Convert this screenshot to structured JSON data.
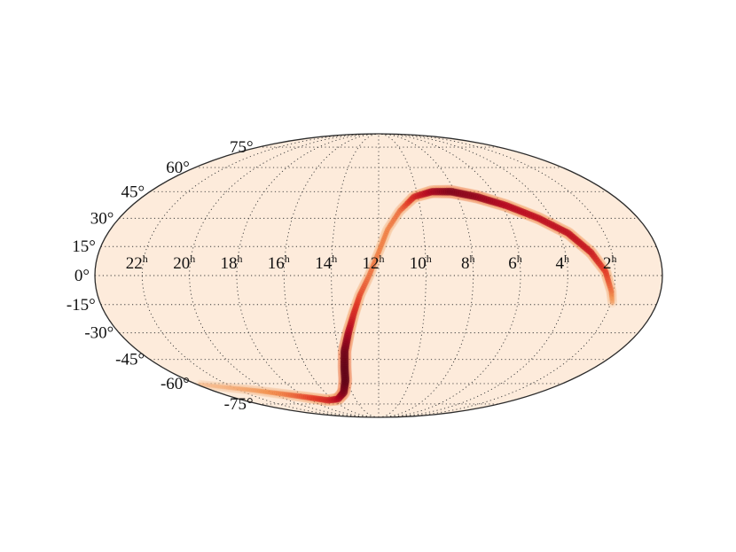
{
  "chart_data": {
    "type": "heatmap",
    "projection": "mollweide",
    "title": "",
    "colors": {
      "background": "#fdebdb",
      "outline": "#2b2b2b",
      "grid": "#3a3a3a",
      "ramp": [
        "#f7c9a4",
        "#f28b45",
        "#e0301e",
        "#b3001e",
        "#5c0015"
      ]
    },
    "grid": true,
    "ra_direction": "east-left",
    "ra_ticks": [
      {
        "hours": 22,
        "base": "22",
        "sup": "h"
      },
      {
        "hours": 20,
        "base": "20",
        "sup": "h"
      },
      {
        "hours": 18,
        "base": "18",
        "sup": "h"
      },
      {
        "hours": 16,
        "base": "16",
        "sup": "h"
      },
      {
        "hours": 14,
        "base": "14",
        "sup": "h"
      },
      {
        "hours": 12,
        "base": "12",
        "sup": "h"
      },
      {
        "hours": 10,
        "base": "10",
        "sup": "h"
      },
      {
        "hours": 8,
        "base": "8",
        "sup": "h"
      },
      {
        "hours": 6,
        "base": "6",
        "sup": "h"
      },
      {
        "hours": 4,
        "base": "4",
        "sup": "h"
      },
      {
        "hours": 2,
        "base": "2",
        "sup": "h"
      }
    ],
    "dec_ticks": [
      {
        "deg": 75,
        "label": "75°"
      },
      {
        "deg": 60,
        "label": "60°"
      },
      {
        "deg": 45,
        "label": "45°"
      },
      {
        "deg": 30,
        "label": "30°"
      },
      {
        "deg": 15,
        "label": "15°"
      },
      {
        "deg": 0,
        "label": "0°"
      },
      {
        "deg": -15,
        "label": "-15°"
      },
      {
        "deg": -30,
        "label": "-30°"
      },
      {
        "deg": -45,
        "label": "-45°"
      },
      {
        "deg": -60,
        "label": "-60°"
      },
      {
        "deg": -75,
        "label": "-75°"
      }
    ],
    "probability_band": [
      {
        "ra_h": 23.8,
        "dec": -60.5,
        "density": 0.05
      },
      {
        "ra_h": 22.5,
        "dec": -62.5,
        "density": 0.12
      },
      {
        "ra_h": 21.0,
        "dec": -64.5,
        "density": 0.2
      },
      {
        "ra_h": 19.5,
        "dec": -67.0,
        "density": 0.3
      },
      {
        "ra_h": 18.0,
        "dec": -69.5,
        "density": 0.45
      },
      {
        "ra_h": 16.5,
        "dec": -72.0,
        "density": 0.6
      },
      {
        "ra_h": 15.5,
        "dec": -71.0,
        "density": 0.75
      },
      {
        "ra_h": 14.6,
        "dec": -66.0,
        "density": 0.9
      },
      {
        "ra_h": 14.1,
        "dec": -58.0,
        "density": 1.0
      },
      {
        "ra_h": 13.9,
        "dec": -50.0,
        "density": 1.0
      },
      {
        "ra_h": 13.7,
        "dec": -40.0,
        "density": 0.95
      },
      {
        "ra_h": 13.4,
        "dec": -30.0,
        "density": 0.8
      },
      {
        "ra_h": 13.1,
        "dec": -20.0,
        "density": 0.6
      },
      {
        "ra_h": 12.8,
        "dec": -10.0,
        "density": 0.45
      },
      {
        "ra_h": 12.4,
        "dec": 0.0,
        "density": 0.35
      },
      {
        "ra_h": 12.0,
        "dec": 12.0,
        "density": 0.3
      },
      {
        "ra_h": 11.6,
        "dec": 24.0,
        "density": 0.3
      },
      {
        "ra_h": 11.0,
        "dec": 34.0,
        "density": 0.35
      },
      {
        "ra_h": 10.2,
        "dec": 42.0,
        "density": 0.6
      },
      {
        "ra_h": 9.2,
        "dec": 45.0,
        "density": 0.8
      },
      {
        "ra_h": 8.2,
        "dec": 45.0,
        "density": 0.9
      },
      {
        "ra_h": 7.0,
        "dec": 42.0,
        "density": 0.85
      },
      {
        "ra_h": 5.8,
        "dec": 37.0,
        "density": 0.75
      },
      {
        "ra_h": 4.6,
        "dec": 30.0,
        "density": 0.7
      },
      {
        "ra_h": 3.6,
        "dec": 22.0,
        "density": 0.7
      },
      {
        "ra_h": 2.9,
        "dec": 12.0,
        "density": 0.65
      },
      {
        "ra_h": 2.4,
        "dec": 2.0,
        "density": 0.5
      },
      {
        "ra_h": 2.1,
        "dec": -8.0,
        "density": 0.35
      },
      {
        "ra_h": 1.9,
        "dec": -15.0,
        "density": 0.15
      }
    ]
  }
}
